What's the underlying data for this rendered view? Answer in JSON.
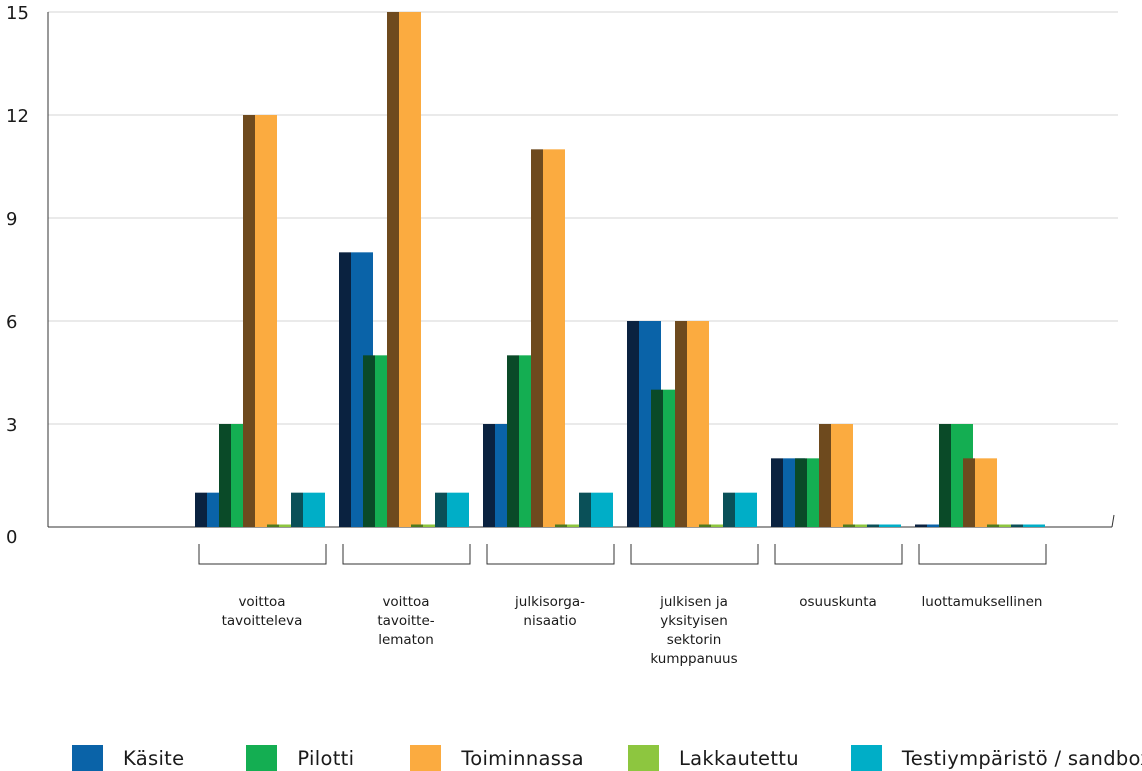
{
  "chart_data": {
    "type": "bar",
    "style": "3d",
    "grid": true,
    "ylim": [
      0,
      15
    ],
    "yticks": [
      "0",
      "3",
      "6",
      "9",
      "12",
      "15"
    ],
    "categories": [
      [
        "voittoa",
        "tavoitteleva"
      ],
      [
        "voittoa",
        "tavoitte-",
        "lematon"
      ],
      [
        "julkisorga-",
        "nisaatio"
      ],
      [
        "julkisen ja",
        "yksityisen",
        "sektorin",
        "kumppanuus"
      ],
      [
        "osuuskunta"
      ],
      [
        "luottamuksellinen"
      ]
    ],
    "series": [
      {
        "name": "Käsite",
        "color": "#0a63a8",
        "shade": "#0a2240",
        "values": [
          1,
          8,
          3,
          6,
          2,
          0
        ]
      },
      {
        "name": "Pilotti",
        "color": "#14ae52",
        "shade": "#0a4a28",
        "values": [
          3,
          5,
          5,
          4,
          2,
          3
        ]
      },
      {
        "name": "Toiminnassa",
        "color": "#fbab40",
        "shade": "#6e4a1e",
        "values": [
          12,
          15,
          11,
          6,
          3,
          2
        ]
      },
      {
        "name": "Lakkautettu",
        "color": "#8dc63f",
        "shade": "#4f7a1e",
        "values": [
          0,
          0,
          0,
          0,
          0,
          0
        ]
      },
      {
        "name": "Testiympäristö / sandbox",
        "color": "#00aec7",
        "shade": "#0a5058",
        "values": [
          1,
          1,
          1,
          1,
          0,
          0
        ]
      }
    ],
    "legend_position": "bottom"
  }
}
